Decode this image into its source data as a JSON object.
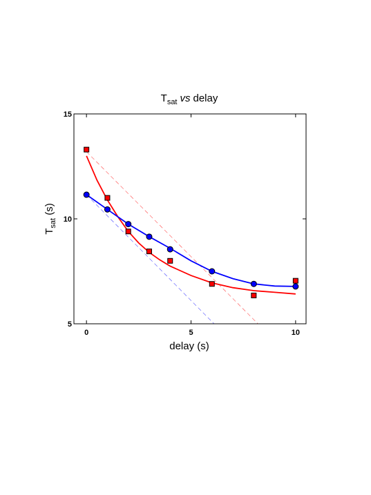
{
  "chart_data": {
    "type": "scatter",
    "title": {
      "main": "T",
      "sub": "sat",
      "italic": "vs",
      "rest": "delay"
    },
    "xlabel": "delay (s)",
    "ylabel": {
      "main": "T",
      "sub": "sat",
      "rest": " (s)"
    },
    "xlim": [
      -0.6,
      10.5
    ],
    "ylim": [
      5,
      15
    ],
    "xticks": [
      0,
      5,
      10
    ],
    "yticks": [
      5,
      10,
      15
    ],
    "grid": false,
    "series": [
      {
        "color": "#ff0000",
        "marker": "square",
        "points": {
          "x": [
            0,
            1,
            2,
            3,
            4,
            6,
            8,
            10
          ],
          "y": [
            13.3,
            11.0,
            9.4,
            8.45,
            8.0,
            6.9,
            6.35,
            7.05
          ]
        },
        "fit_curve": {
          "x": [
            0,
            0.5,
            1,
            1.5,
            2,
            2.5,
            3,
            3.5,
            4,
            5,
            6,
            7,
            8,
            9,
            10
          ],
          "y": [
            13.0,
            11.85,
            10.9,
            10.1,
            9.4,
            8.85,
            8.4,
            8.05,
            7.75,
            7.3,
            6.95,
            6.72,
            6.58,
            6.5,
            6.42
          ]
        },
        "tangent": {
          "x": [
            0,
            8.2
          ],
          "y": [
            13.2,
            5.0
          ]
        }
      },
      {
        "color": "#0000ff",
        "marker": "circle",
        "points": {
          "x": [
            0,
            1,
            2,
            3,
            4,
            6,
            8,
            10
          ],
          "y": [
            11.15,
            10.45,
            9.75,
            9.15,
            8.55,
            7.5,
            6.9,
            6.78
          ]
        },
        "fit_curve": {
          "x": [
            0,
            1,
            2,
            3,
            4,
            5,
            6,
            7,
            8,
            9,
            10
          ],
          "y": [
            11.15,
            10.45,
            9.75,
            9.15,
            8.6,
            8.0,
            7.5,
            7.15,
            6.9,
            6.8,
            6.78
          ]
        },
        "tangent": {
          "x": [
            0,
            6.1
          ],
          "y": [
            11.15,
            5.0
          ]
        }
      }
    ]
  }
}
